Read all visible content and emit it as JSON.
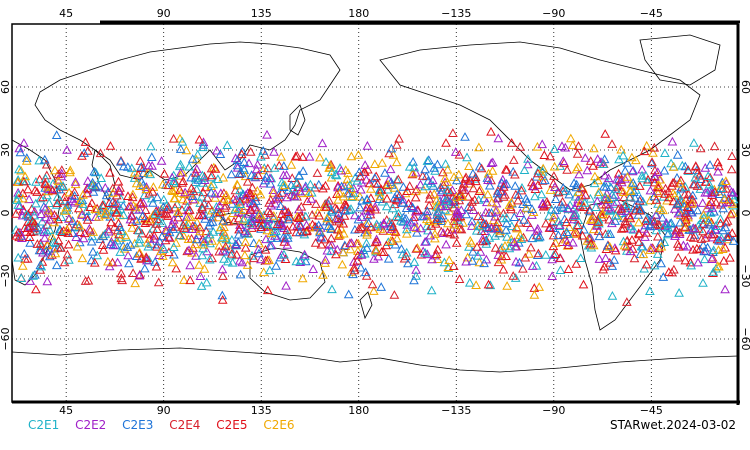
{
  "map": {
    "lon_ticks": [
      "45",
      "90",
      "135",
      "180",
      "−135",
      "−90",
      "−45"
    ],
    "lat_ticks": [
      "60",
      "30",
      "0",
      "−30",
      "−60"
    ]
  },
  "legend": [
    {
      "label": "C2E1",
      "color": "#1fb2c8"
    },
    {
      "label": "C2E2",
      "color": "#a020c8"
    },
    {
      "label": "C2E3",
      "color": "#1e74d8"
    },
    {
      "label": "C2E4",
      "color": "#d8202c"
    },
    {
      "label": "C2E5",
      "color": "#e0101a"
    },
    {
      "label": "C2E6",
      "color": "#f0a800"
    }
  ],
  "stamp": "STARwet.2024-03-02",
  "colors": {
    "coast": "#000000",
    "grid": "#000000",
    "frame": "#000000"
  },
  "markers": {
    "shape": "triangle-outline",
    "lat_range": [
      -45,
      45
    ],
    "note_density": "dense"
  }
}
